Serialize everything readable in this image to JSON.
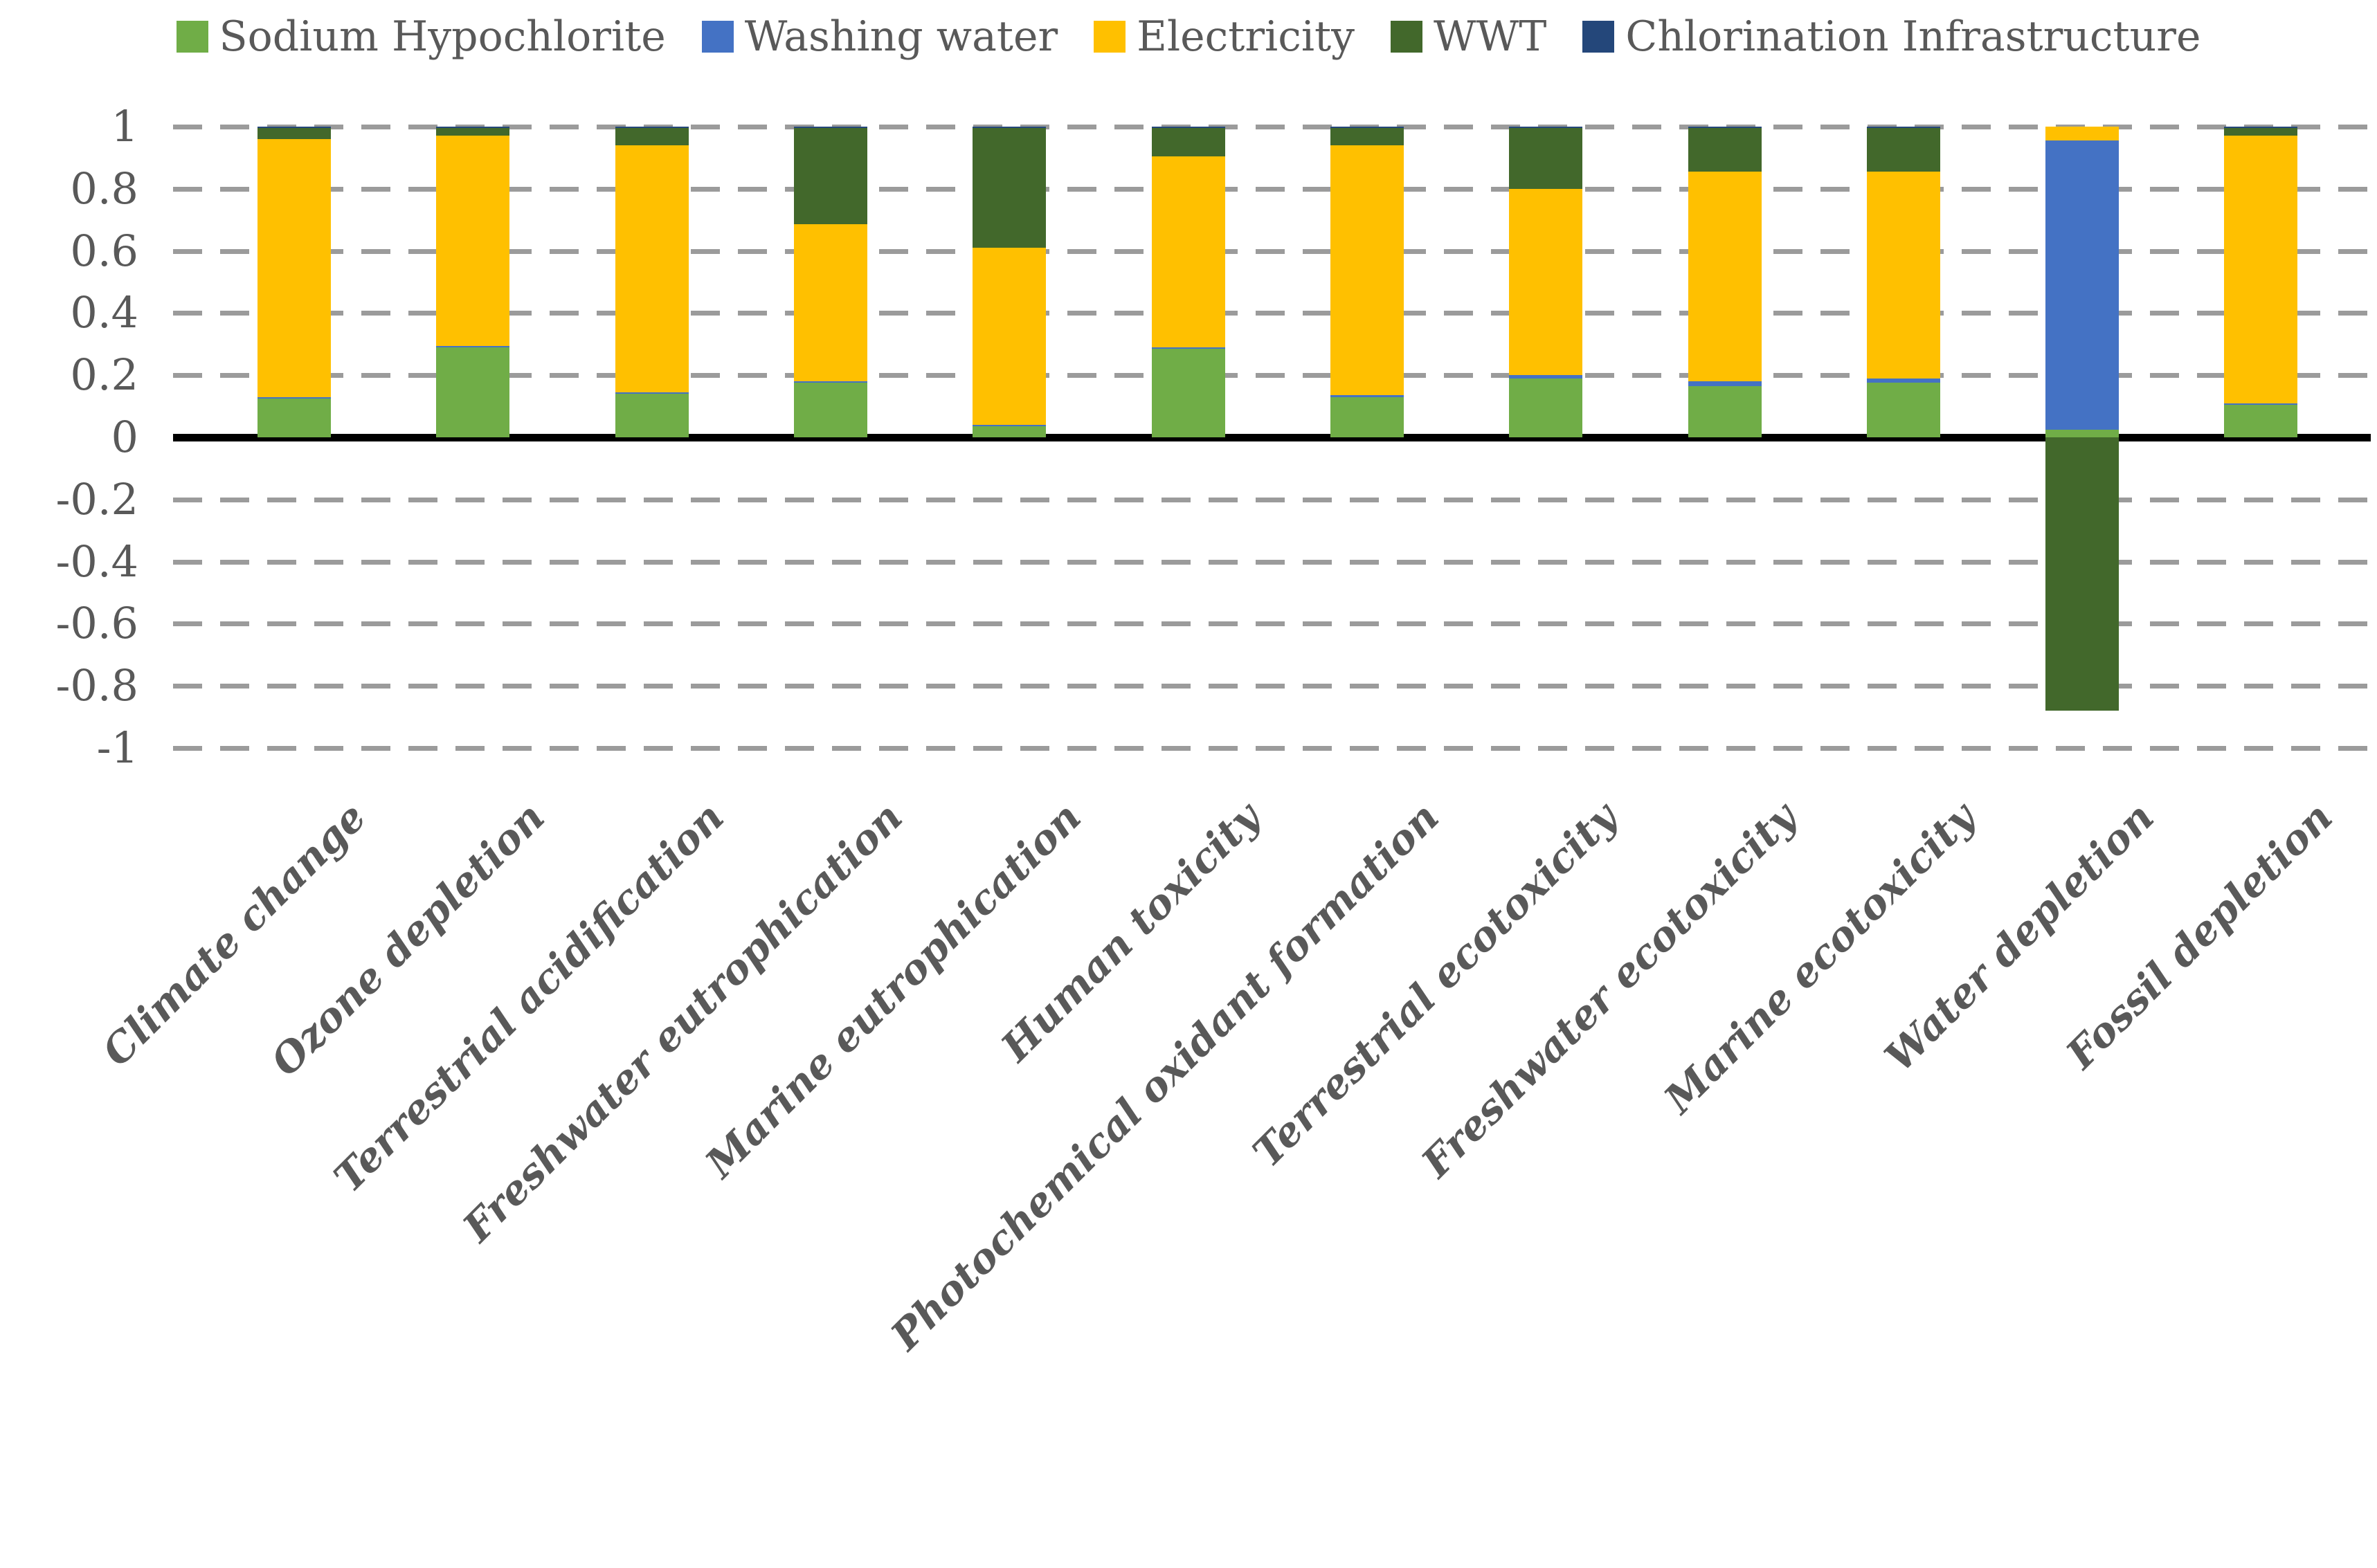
{
  "legend": {
    "items": [
      {
        "label": "Sodium Hypochlorite",
        "color": "#70AD47"
      },
      {
        "label": "Washing water",
        "color": "#4472C4"
      },
      {
        "label": "Electricity",
        "color": "#FFC000"
      },
      {
        "label": "WWT",
        "color": "#42682B"
      },
      {
        "label": "Chlorination Infrastructure",
        "color": "#24477A"
      }
    ]
  },
  "y_axis": {
    "tick_labels": [
      "1",
      "0.8",
      "0.6",
      "0.4",
      "0.2",
      "0",
      "-0.2",
      "-0.4",
      "-0.6",
      "-0.8",
      "-1"
    ],
    "tick_values": [
      1,
      0.8,
      0.6,
      0.4,
      0.2,
      0,
      -0.2,
      -0.4,
      -0.6,
      -0.8,
      -1
    ],
    "min": -1,
    "max": 1
  },
  "chart_data": {
    "type": "bar",
    "stacked": true,
    "title": "",
    "xlabel": "",
    "ylabel": "",
    "ylim": [
      -1,
      1
    ],
    "grid": "horizontal dashed every 0.2",
    "legend_position": "top",
    "zero_line": "solid black",
    "categories": [
      "Climate change",
      "Ozone depletion",
      "Terrestrial acidification",
      "Freshwater eutrophication",
      "Marine eutrophication",
      "Human toxicity",
      "Photochemical oxidant formation",
      "Terrestrial ecotoxicity",
      "Freshwater ecotoxicity",
      "Marine ecotoxicity",
      "Water depletion",
      "Fossil depletion"
    ],
    "series": [
      {
        "name": "Sodium Hypochlorite",
        "color": "#70AD47",
        "values": [
          0.125,
          0.29,
          0.14,
          0.175,
          0.035,
          0.285,
          0.13,
          0.19,
          0.165,
          0.175,
          0.025,
          0.105
        ]
      },
      {
        "name": "Washing water",
        "color": "#4472C4",
        "values": [
          0.005,
          0.005,
          0.005,
          0.005,
          0.005,
          0.005,
          0.005,
          0.01,
          0.015,
          0.015,
          0.93,
          0.005
        ]
      },
      {
        "name": "Electricity",
        "color": "#FFC000",
        "values": [
          0.83,
          0.675,
          0.795,
          0.505,
          0.57,
          0.615,
          0.805,
          0.6,
          0.675,
          0.665,
          0.045,
          0.86
        ]
      },
      {
        "name": "WWT",
        "color": "#42682B",
        "values": [
          0.035,
          0.025,
          0.055,
          0.31,
          0.385,
          0.09,
          0.055,
          0.195,
          0.14,
          0.14,
          -0.88,
          0.025
        ]
      },
      {
        "name": "Chlorination Infrastructure",
        "color": "#24477A",
        "values": [
          0.005,
          0.005,
          0.005,
          0.005,
          0.005,
          0.005,
          0.005,
          0.005,
          0.005,
          0.005,
          0,
          0.005
        ]
      }
    ]
  },
  "styles": {
    "text_color": "#595959",
    "grid_color": "#9B9B9B",
    "zero_axis_color": "#000000",
    "background": "#FFFFFF"
  }
}
